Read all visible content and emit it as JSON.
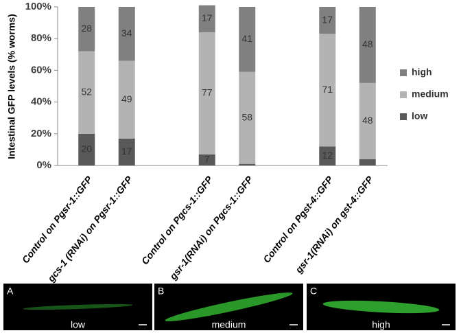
{
  "chart_data": {
    "type": "stacked_bar",
    "ylabel": "Intestinal GFP levels (% worms)",
    "categories": [
      "Control on Pgsr-1::GFP",
      "gcs-1 (RNAi) on Pgsr-1::GFP",
      null,
      "Control on Pgcs-1::GFP",
      "gsr-1(RNAi) on Pgcs-1::GFP",
      null,
      "Control on Pgst-4::GFP",
      "gsr-1(RNAi) on gst-4::GFP"
    ],
    "series": [
      {
        "name": "low",
        "color": "#595959",
        "values": [
          20,
          17,
          null,
          7,
          1,
          null,
          12,
          4
        ],
        "value_labels": [
          "20",
          "17",
          null,
          "7",
          null,
          null,
          "12",
          null
        ]
      },
      {
        "name": "medium",
        "color": "#b3b3b3",
        "values": [
          52,
          49,
          null,
          77,
          58,
          null,
          71,
          48
        ],
        "value_labels": [
          "52",
          "49",
          null,
          "77",
          "58",
          null,
          "71",
          "48"
        ]
      },
      {
        "name": "high",
        "color": "#808080",
        "values": [
          28,
          34,
          null,
          17,
          41,
          null,
          17,
          48
        ],
        "value_labels": [
          "28",
          "34",
          null,
          "17",
          "41",
          null,
          "17",
          "48"
        ]
      }
    ],
    "ylim": [
      0,
      100
    ],
    "yticks": [
      {
        "value": 0,
        "label": "0%"
      },
      {
        "value": 20,
        "label": "20%"
      },
      {
        "value": 40,
        "label": "40%"
      },
      {
        "value": 60,
        "label": "60%"
      },
      {
        "value": 80,
        "label": "80%"
      },
      {
        "value": 100,
        "label": "100%"
      }
    ],
    "legend": "right"
  },
  "panels": [
    {
      "letter": "A",
      "caption": "low"
    },
    {
      "letter": "B",
      "caption": "medium"
    },
    {
      "letter": "C",
      "caption": "high"
    }
  ]
}
